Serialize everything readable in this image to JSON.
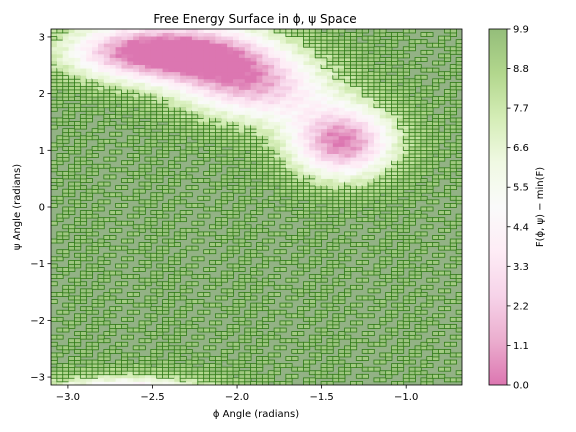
{
  "chart_data": {
    "type": "heatmap",
    "title": "Free Energy Surface in ϕ, ψ Space",
    "xlabel": "ϕ Angle (radians)",
    "ylabel": "ψ Angle (radians)",
    "colorbar_label": "F(ϕ, ψ) − min(F)",
    "xlim": [
      -3.1,
      -0.67
    ],
    "ylim": [
      -3.14,
      3.14
    ],
    "x_ticks": [
      -3.0,
      -2.5,
      -2.0,
      -1.5,
      -1.0
    ],
    "x_tick_labels": [
      "−3.0",
      "−2.5",
      "−2.0",
      "−1.5",
      "−1.0"
    ],
    "y_ticks": [
      -3,
      -2,
      -1,
      0,
      1,
      2,
      3
    ],
    "y_tick_labels": [
      "−3",
      "−2",
      "−1",
      "0",
      "1",
      "2",
      "3"
    ],
    "colorbar_range": [
      0.0,
      9.9
    ],
    "colorbar_ticks": [
      0.0,
      1.1,
      2.2,
      3.3,
      4.4,
      5.5,
      6.6,
      7.7,
      8.8,
      9.9
    ],
    "colorbar_tick_labels": [
      "0.0",
      "1.1",
      "2.2",
      "3.3",
      "4.4",
      "5.5",
      "6.6",
      "7.7",
      "8.8",
      "9.9"
    ],
    "colormap": [
      "#c51b7d",
      "#de77ae",
      "#f1b6da",
      "#fde0ef",
      "#f7f7f7",
      "#e6f5d0",
      "#b8e186",
      "#7fbc41",
      "#4d9221"
    ],
    "background_level": 9.9,
    "background_color": "#93b285",
    "contour_line_color": "#2f7a16",
    "basins": [
      {
        "phi": -2.55,
        "psi": 2.75,
        "depth": 9.9,
        "width_phi": 0.33,
        "width_psi": 0.36
      },
      {
        "phi": -1.38,
        "psi": 1.15,
        "depth": 9.6,
        "width_phi": 0.22,
        "width_psi": 0.45
      },
      {
        "phi": -1.85,
        "psi": 2.1,
        "depth": 6.2,
        "width_phi": 0.3,
        "width_psi": 0.45
      },
      {
        "phi": -2.1,
        "psi": 2.6,
        "depth": 5.8,
        "width_phi": 0.28,
        "width_psi": 0.45
      },
      {
        "phi": -2.65,
        "psi": -3.3,
        "depth": 7.5,
        "width_phi": 0.35,
        "width_psi": 0.22
      }
    ]
  }
}
